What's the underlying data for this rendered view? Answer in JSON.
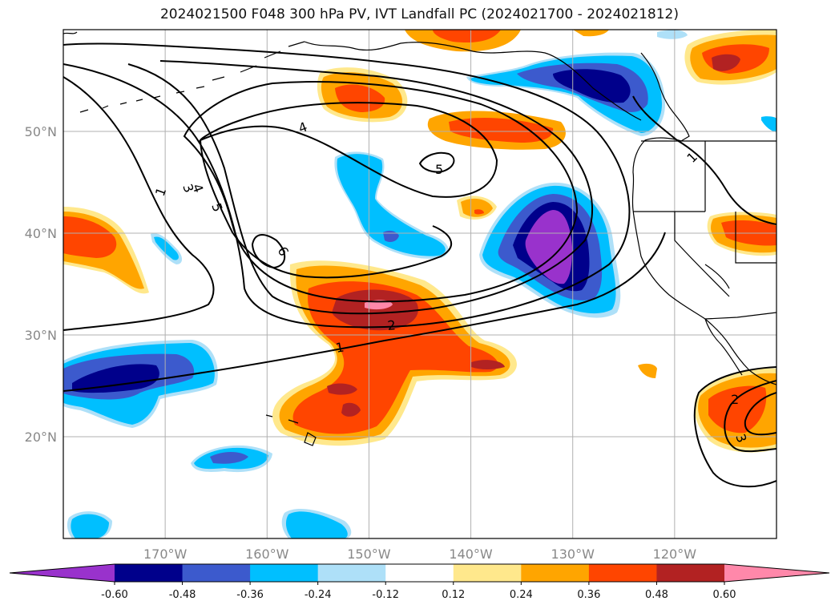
{
  "title": "2024021500 F048 300 hPa PV, IVT Landfall PC (2024021700 - 2024021812)",
  "map": {
    "lon_range": [
      -180,
      -110
    ],
    "lat_range": [
      10,
      60
    ],
    "lat_ticks": [
      {
        "value": 20,
        "label": "20°N"
      },
      {
        "value": 30,
        "label": "30°N"
      },
      {
        "value": 40,
        "label": "40°N"
      },
      {
        "value": 50,
        "label": "50°N"
      }
    ],
    "lon_ticks": [
      {
        "value": -170,
        "label": "170°W"
      },
      {
        "value": -160,
        "label": "160°W"
      },
      {
        "value": -150,
        "label": "150°W"
      },
      {
        "value": -140,
        "label": "140°W"
      },
      {
        "value": -130,
        "label": "130°W"
      },
      {
        "value": -120,
        "label": "120°W"
      }
    ],
    "grid": true
  },
  "pv_contour_labels": [
    "1",
    "1",
    "1",
    "2",
    "2",
    "3",
    "3",
    "4",
    "4",
    "5",
    "5",
    "6"
  ],
  "colorbar": {
    "ticks": [
      "-0.60",
      "-0.48",
      "-0.36",
      "-0.24",
      "-0.12",
      "0.12",
      "0.24",
      "0.36",
      "0.48",
      "0.60"
    ],
    "colors": [
      "#9932cc",
      "#00008b",
      "#3c5acd",
      "#00bfff",
      "#aee0f8",
      "#ffffff",
      "#ffe88c",
      "#ffa500",
      "#ff4500",
      "#b22222",
      "#ff88aa"
    ],
    "extend": "both"
  }
}
